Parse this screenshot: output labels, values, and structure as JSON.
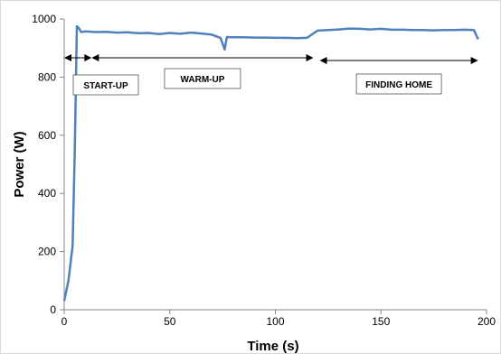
{
  "chart_data": {
    "type": "line",
    "title": "",
    "xlabel": "Time (s)",
    "ylabel": "Power (W)",
    "xlim": [
      0,
      200
    ],
    "ylim": [
      0,
      1000
    ],
    "xticks": [
      0,
      50,
      100,
      150,
      200
    ],
    "yticks": [
      0,
      200,
      400,
      600,
      800,
      1000
    ],
    "grid": false,
    "series": [
      {
        "color": "#4f81bd",
        "x": [
          0,
          2,
          4,
          5,
          6,
          7,
          8,
          10,
          15,
          20,
          25,
          30,
          35,
          40,
          45,
          50,
          55,
          60,
          65,
          70,
          74,
          76,
          77,
          80,
          85,
          90,
          95,
          100,
          105,
          110,
          115,
          120,
          125,
          130,
          135,
          140,
          145,
          150,
          155,
          160,
          165,
          170,
          175,
          180,
          185,
          190,
          194,
          196
        ],
        "y": [
          30,
          100,
          220,
          550,
          975,
          968,
          955,
          957,
          955,
          956,
          953,
          954,
          951,
          952,
          948,
          952,
          949,
          953,
          950,
          946,
          935,
          895,
          938,
          937,
          937,
          936,
          936,
          935,
          935,
          934,
          935,
          960,
          962,
          964,
          967,
          966,
          964,
          966,
          963,
          963,
          962,
          962,
          961,
          962,
          962,
          963,
          962,
          930
        ]
      }
    ],
    "phases": [
      {
        "label": "START-UP",
        "x_start": 0,
        "x_end": 13
      },
      {
        "label": "WARM-UP",
        "x_start": 13,
        "x_end": 118
      },
      {
        "label": "FINDING HOME",
        "x_start": 121,
        "x_end": 196
      }
    ]
  }
}
